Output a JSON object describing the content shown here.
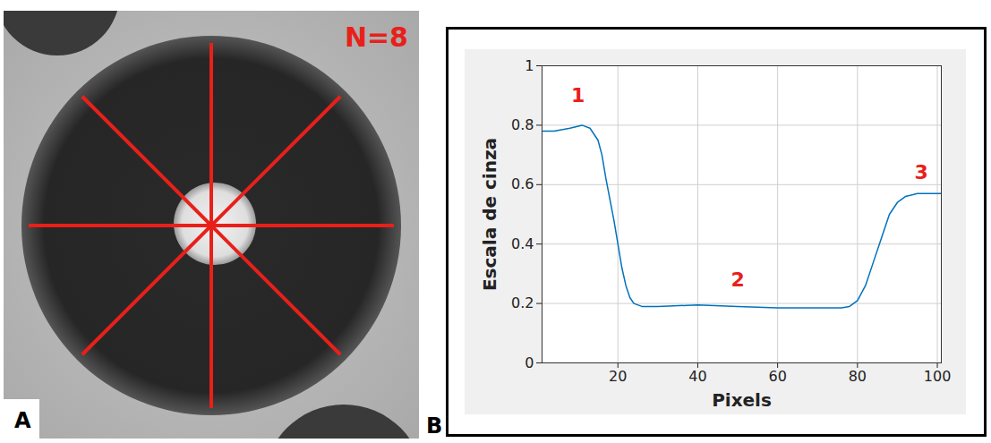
{
  "panel_a": {
    "letter": "A",
    "label": "N=8",
    "label_color": "#e8201a"
  },
  "chart_data": {
    "type": "line",
    "panel_letter": "B",
    "x_label": "Pixels",
    "y_label": "Escala de cinza",
    "x": [
      1,
      4,
      8,
      11,
      13,
      15,
      16,
      17,
      18,
      19,
      20,
      21,
      22,
      23,
      24,
      26,
      30,
      40,
      50,
      60,
      70,
      76,
      78,
      80,
      82,
      84,
      86,
      88,
      90,
      92,
      95,
      101
    ],
    "values": [
      0.78,
      0.78,
      0.79,
      0.8,
      0.79,
      0.75,
      0.7,
      0.62,
      0.55,
      0.48,
      0.4,
      0.32,
      0.26,
      0.22,
      0.2,
      0.19,
      0.19,
      0.195,
      0.19,
      0.185,
      0.185,
      0.185,
      0.19,
      0.21,
      0.26,
      0.34,
      0.42,
      0.5,
      0.54,
      0.56,
      0.57,
      0.57
    ],
    "color": "#0072bd",
    "xlim": [
      1,
      101
    ],
    "xticks": [
      20,
      40,
      60,
      80,
      100
    ],
    "ylim": [
      0,
      1
    ],
    "yticks": [
      0,
      0.2,
      0.4,
      0.6,
      0.8,
      1
    ],
    "grid": true,
    "annotations": [
      {
        "text": "1",
        "x": 10,
        "y": 0.9,
        "color": "#e8201a"
      },
      {
        "text": "2",
        "x": 50,
        "y": 0.28,
        "color": "#e8201a"
      },
      {
        "text": "3",
        "x": 96,
        "y": 0.64,
        "color": "#e8201a"
      }
    ]
  }
}
